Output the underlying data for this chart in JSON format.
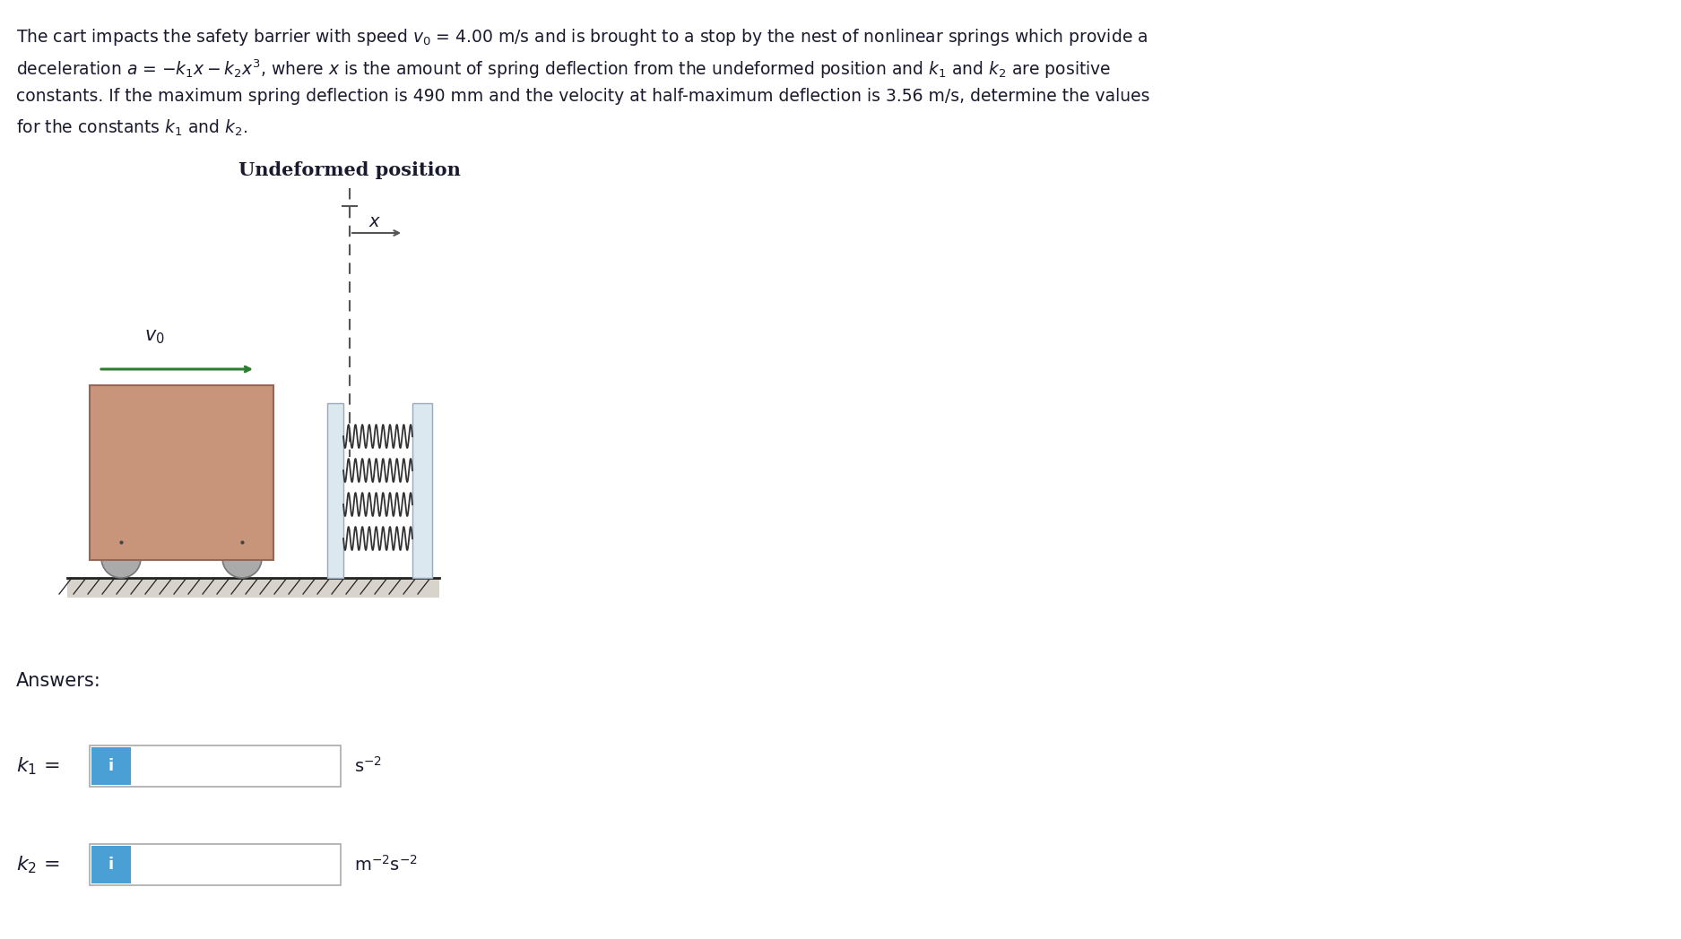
{
  "bg_color": "#ffffff",
  "text_color": "#1a1a2e",
  "diagram_title": "Undeformed position",
  "cart_color": "#c9957a",
  "cart_edge_color": "#996655",
  "wheel_color": "#aaaaaa",
  "wheel_edge_color": "#777777",
  "ground_fill_color": "#d8d4cc",
  "ground_line_color": "#222222",
  "barrier_color": "#dce8f0",
  "barrier_edge_color": "#99aabb",
  "spring_color": "#333333",
  "arrow_color": "#2e7d32",
  "dashed_color": "#555555",
  "answers_label": "Answers:",
  "k1_units": "s⁻²",
  "k2_units": "m⁻²s⁻²",
  "input_bg": "#ffffff",
  "input_border": "#aaaaaa",
  "info_btn_color": "#4a9fd4",
  "info_text": "i"
}
